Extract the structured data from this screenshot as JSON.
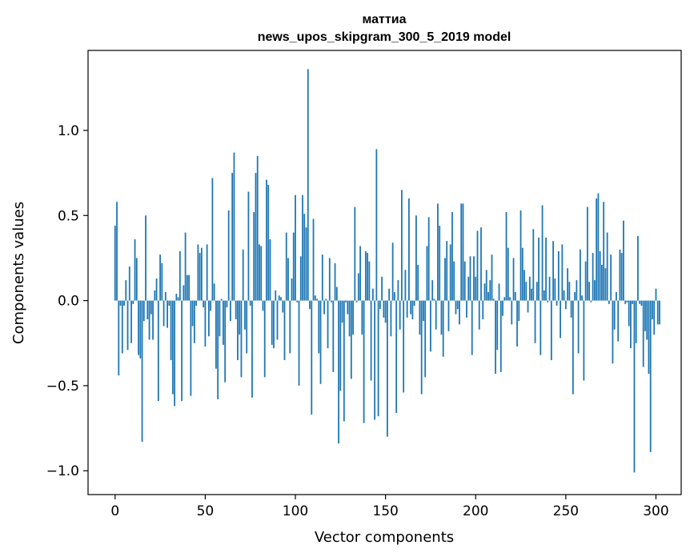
{
  "chart_data": {
    "type": "bar",
    "title_line1": "маттиа",
    "title_line2": "news_upos_skipgram_300_5_2019 model",
    "xlabel": "Vector components",
    "ylabel": "Components values",
    "xlim": [
      -15,
      314
    ],
    "ylim": [
      -1.14,
      1.47
    ],
    "xticks": [
      0,
      50,
      100,
      150,
      200,
      250,
      300
    ],
    "xtick_labels": [
      "0",
      "50",
      "100",
      "150",
      "200",
      "250",
      "300"
    ],
    "yticks": [
      -1.0,
      -0.5,
      0.0,
      0.5,
      1.0
    ],
    "ytick_labels": [
      "−1.0",
      "−0.5",
      "0.0",
      "0.5",
      "1.0"
    ],
    "bar_color": "#1f77b4",
    "values": [
      0.44,
      0.58,
      -0.44,
      -0.03,
      -0.31,
      -0.03,
      0.12,
      -0.29,
      0.2,
      -0.25,
      -0.02,
      0.36,
      0.25,
      -0.32,
      -0.34,
      -0.83,
      -0.12,
      0.5,
      -0.11,
      -0.23,
      -0.08,
      -0.23,
      0.06,
      0.13,
      -0.59,
      0.27,
      0.22,
      -0.15,
      0.05,
      -0.16,
      -0.03,
      -0.35,
      -0.55,
      -0.62,
      0.04,
      0.02,
      0.29,
      -0.59,
      0.09,
      0.4,
      0.15,
      0.15,
      -0.56,
      -0.15,
      -0.25,
      -0.03,
      0.33,
      0.28,
      0.31,
      -0.04,
      -0.27,
      0.33,
      -0.21,
      -0.06,
      0.72,
      0.1,
      -0.4,
      -0.58,
      -0.21,
      0.01,
      -0.26,
      -0.48,
      -0.04,
      0.53,
      -0.12,
      0.75,
      0.87,
      -0.11,
      -0.35,
      -0.2,
      -0.45,
      0.3,
      -0.17,
      -0.31,
      0.64,
      -0.03,
      -0.57,
      0.52,
      0.75,
      0.85,
      0.33,
      0.32,
      -0.06,
      -0.45,
      0.71,
      0.68,
      0.36,
      -0.26,
      -0.28,
      0.06,
      -0.23,
      0.03,
      0.02,
      -0.07,
      -0.35,
      0.4,
      0.25,
      -0.31,
      0.13,
      0.4,
      0.62,
      -0.01,
      -0.5,
      0.26,
      0.62,
      0.51,
      0.43,
      1.36,
      -0.05,
      -0.67,
      0.48,
      0.03,
      0.01,
      -0.31,
      -0.49,
      0.27,
      -0.08,
      0.01,
      -0.28,
      0.25,
      -0.01,
      -0.42,
      0.22,
      0.08,
      -0.84,
      -0.53,
      -0.13,
      -0.71,
      -0.01,
      -0.08,
      -0.21,
      -0.46,
      -0.2,
      0.55,
      -0.01,
      0.16,
      0.32,
      -0.2,
      -0.72,
      0.29,
      0.28,
      0.23,
      -0.47,
      0.07,
      -0.7,
      0.89,
      -0.68,
      -0.05,
      0.14,
      -0.1,
      -0.13,
      -0.8,
      0.07,
      -0.21,
      0.34,
      0.05,
      -0.66,
      0.12,
      -0.17,
      0.65,
      -0.54,
      0.18,
      -0.1,
      0.6,
      -0.08,
      -0.11,
      -0.03,
      0.5,
      0.21,
      -0.2,
      -0.55,
      -0.12,
      -0.45,
      0.32,
      0.49,
      -0.3,
      0.12,
      0.01,
      -0.17,
      0.57,
      0.44,
      -0.2,
      -0.33,
      0.25,
      0.35,
      -0.18,
      0.33,
      0.52,
      0.23,
      -0.08,
      -0.05,
      -0.14,
      0.57,
      0.57,
      0.23,
      -0.1,
      0.14,
      0.26,
      -0.32,
      0.26,
      0.14,
      0.41,
      -0.17,
      0.43,
      -0.11,
      0.1,
      0.18,
      0.05,
      0.12,
      0.27,
      0.01,
      -0.43,
      -0.29,
      0.1,
      -0.42,
      -0.09,
      0.02,
      0.52,
      0.31,
      0.02,
      -0.14,
      0.25,
      0.05,
      -0.27,
      -0.12,
      0.53,
      0.31,
      0.18,
      0.11,
      -0.07,
      0.14,
      0.07,
      0.42,
      -0.25,
      0.11,
      0.37,
      -0.32,
      0.56,
      0.06,
      0.37,
      -0.01,
      0.14,
      -0.35,
      0.35,
      0.13,
      -0.03,
      0.29,
      -0.22,
      0.33,
      0.06,
      -0.05,
      0.19,
      0.11,
      -0.1,
      -0.55,
      0.05,
      0.12,
      -0.31,
      0.3,
      0.03,
      -0.47,
      0.23,
      0.55,
      0.11,
      -0.01,
      0.28,
      0.12,
      0.6,
      0.63,
      0.29,
      0.21,
      0.58,
      0.19,
      0.4,
      -0.02,
      0.27,
      -0.37,
      -0.17,
      0.05,
      -0.24,
      0.3,
      0.28,
      0.47,
      -0.02,
      -0.01,
      -0.15,
      -0.28,
      -0.02,
      -1.01,
      -0.25,
      0.38,
      -0.02,
      -0.03,
      -0.39,
      -0.18,
      -0.23,
      -0.43,
      -0.89,
      -0.11,
      -0.2,
      0.07,
      -0.14,
      -0.14
    ]
  }
}
